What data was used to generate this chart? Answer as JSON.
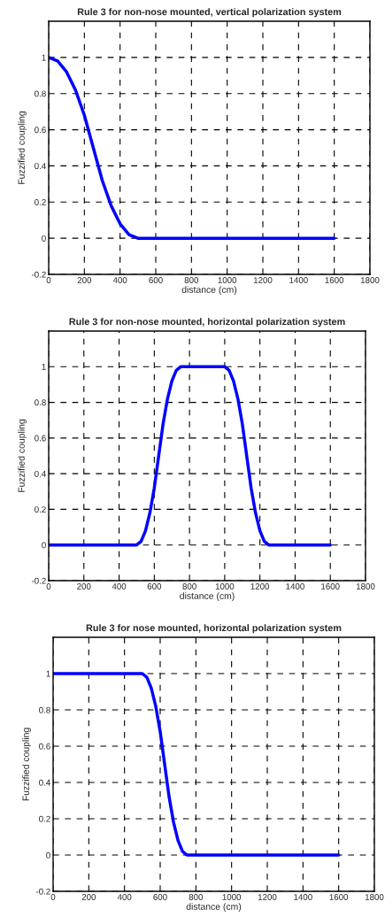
{
  "chart_data": [
    {
      "type": "line",
      "title": "Rule 3 for non-nose mounted, vertical polarization system",
      "xlabel": "distance (cm)",
      "ylabel": "Fuzzified coupling",
      "series": [
        {
          "color": "#0000ff",
          "x": [
            0,
            50,
            100,
            150,
            200,
            250,
            300,
            350,
            400,
            450,
            500,
            1600
          ],
          "values": [
            1,
            0.98,
            0.92,
            0.82,
            0.68,
            0.5,
            0.32,
            0.18,
            0.08,
            0.02,
            0,
            0
          ]
        }
      ],
      "xlim": [
        0,
        1800
      ],
      "xticks": [
        0,
        200,
        400,
        600,
        800,
        1000,
        1200,
        1400,
        1600,
        1800
      ],
      "ylim": [
        -0.2,
        1.2
      ],
      "yticks": [
        -0.2,
        0,
        0.2,
        0.4,
        0.6,
        0.8,
        1
      ],
      "grid": true,
      "line_style": "solid",
      "marker": "none"
    },
    {
      "type": "line",
      "title": "Rule 3 for non-nose mounted, horizontal polarization system",
      "xlabel": "distance (cm)",
      "ylabel": "Fuzzified coupling",
      "series": [
        {
          "color": "#0000ff",
          "x": [
            0,
            500,
            525,
            550,
            575,
            600,
            625,
            650,
            675,
            700,
            725,
            750,
            1000,
            1025,
            1050,
            1075,
            1100,
            1125,
            1150,
            1175,
            1200,
            1225,
            1250,
            1600
          ],
          "values": [
            0,
            0,
            0.02,
            0.08,
            0.18,
            0.32,
            0.5,
            0.68,
            0.82,
            0.92,
            0.98,
            1,
            1,
            0.98,
            0.92,
            0.82,
            0.68,
            0.5,
            0.32,
            0.18,
            0.08,
            0.02,
            0,
            0
          ]
        }
      ],
      "xlim": [
        0,
        1800
      ],
      "xticks": [
        0,
        200,
        400,
        600,
        800,
        1000,
        1200,
        1400,
        1600,
        1800
      ],
      "ylim": [
        -0.2,
        1.2
      ],
      "yticks": [
        -0.2,
        0,
        0.2,
        0.4,
        0.6,
        0.8,
        1
      ],
      "grid": true,
      "line_style": "solid",
      "marker": "none"
    },
    {
      "type": "line",
      "title": "Rule 3 for nose mounted, horizontal polarization system",
      "xlabel": "distance (cm)",
      "ylabel": "Fuzzified coupling",
      "series": [
        {
          "color": "#0000ff",
          "x": [
            0,
            500,
            525,
            550,
            575,
            600,
            625,
            650,
            675,
            700,
            725,
            750,
            1600
          ],
          "values": [
            1,
            1,
            0.98,
            0.92,
            0.82,
            0.68,
            0.5,
            0.32,
            0.18,
            0.08,
            0.02,
            0,
            0
          ]
        }
      ],
      "xlim": [
        0,
        1800
      ],
      "xticks": [
        0,
        200,
        400,
        600,
        800,
        1000,
        1200,
        1400,
        1600,
        1800
      ],
      "ylim": [
        -0.2,
        1.2
      ],
      "yticks": [
        -0.2,
        0,
        0.2,
        0.4,
        0.6,
        0.8,
        1
      ],
      "grid": true,
      "line_style": "solid",
      "marker": "none"
    }
  ]
}
